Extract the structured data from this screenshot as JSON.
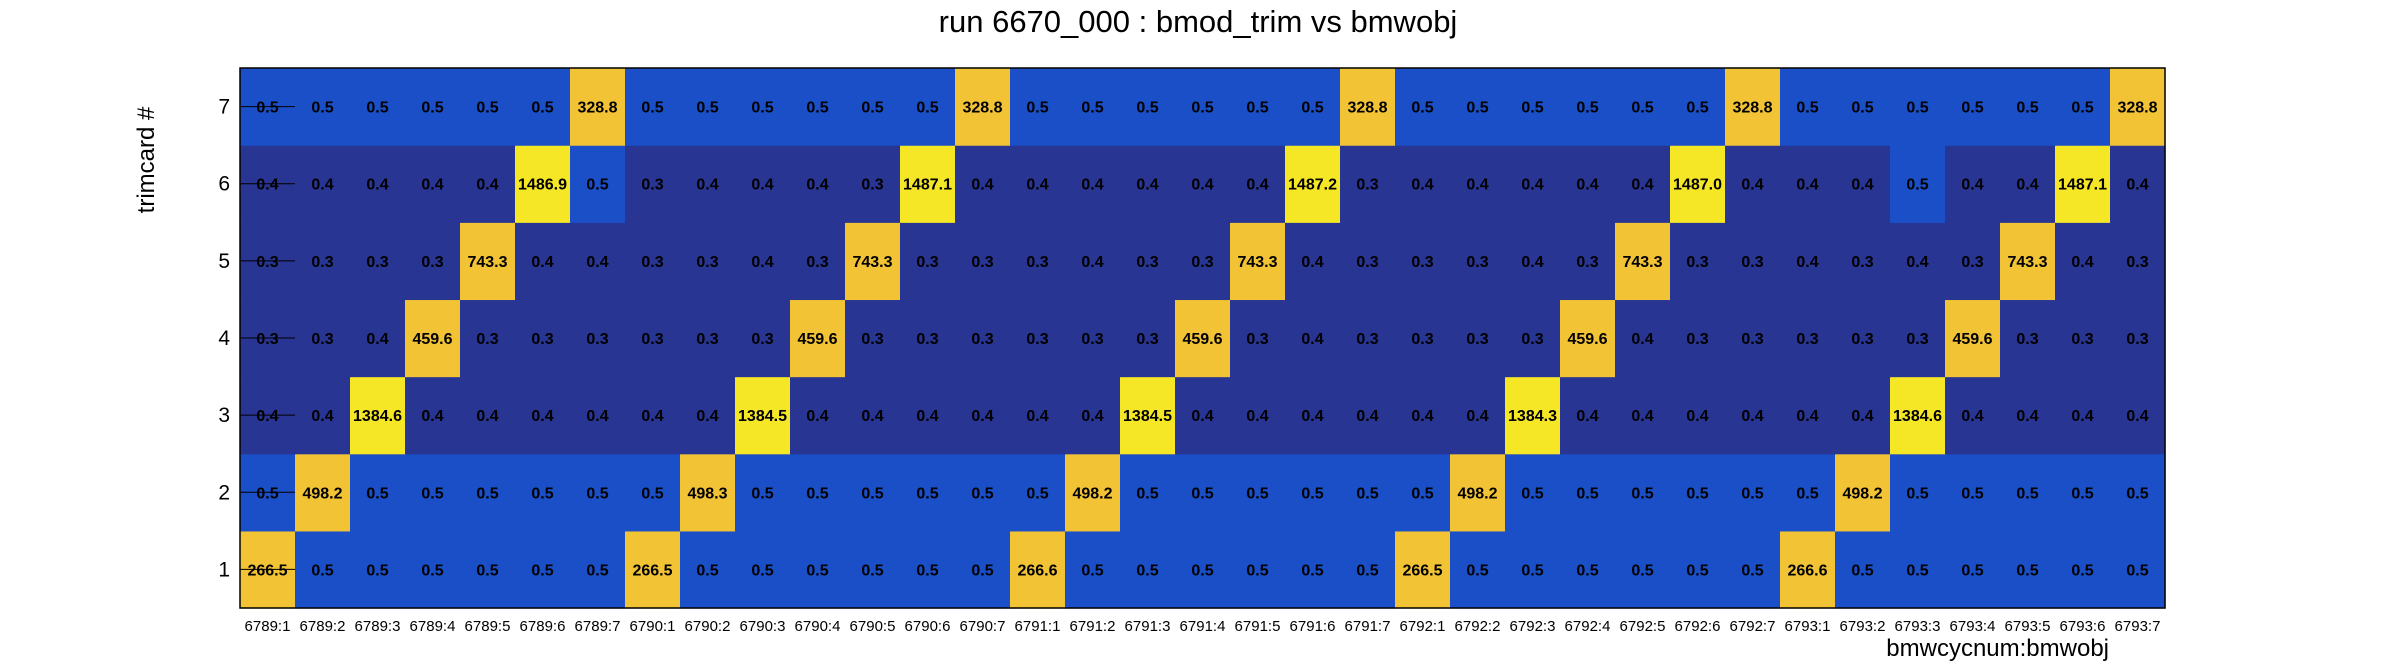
{
  "chart_data": {
    "type": "heatmap",
    "title": "run 6670_000 : bmod_trim vs bmwobj",
    "xlabel": "bmwcycnum:bmwobj",
    "ylabel": "trimcard #",
    "categories": [
      "6789:1",
      "6789:2",
      "6789:3",
      "6789:4",
      "6789:5",
      "6789:6",
      "6789:7",
      "6790:1",
      "6790:2",
      "6790:3",
      "6790:4",
      "6790:5",
      "6790:6",
      "6790:7",
      "6791:1",
      "6791:2",
      "6791:3",
      "6791:4",
      "6791:5",
      "6791:6",
      "6791:7",
      "6792:1",
      "6792:2",
      "6792:3",
      "6792:4",
      "6792:5",
      "6792:6",
      "6792:7",
      "6793:1",
      "6793:2",
      "6793:3",
      "6793:4",
      "6793:5",
      "6793:6",
      "6793:7"
    ],
    "y_categories": [
      "1",
      "2",
      "3",
      "4",
      "5",
      "6",
      "7"
    ],
    "values": [
      [
        "266.5",
        "0.5",
        "0.5",
        "0.5",
        "0.5",
        "0.5",
        "0.5",
        "266.5",
        "0.5",
        "0.5",
        "0.5",
        "0.5",
        "0.5",
        "0.5",
        "266.6",
        "0.5",
        "0.5",
        "0.5",
        "0.5",
        "0.5",
        "0.5",
        "266.5",
        "0.5",
        "0.5",
        "0.5",
        "0.5",
        "0.5",
        "0.5",
        "266.6",
        "0.5",
        "0.5",
        "0.5",
        "0.5",
        "0.5",
        "0.5"
      ],
      [
        "0.5",
        "498.2",
        "0.5",
        "0.5",
        "0.5",
        "0.5",
        "0.5",
        "0.5",
        "498.3",
        "0.5",
        "0.5",
        "0.5",
        "0.5",
        "0.5",
        "0.5",
        "498.2",
        "0.5",
        "0.5",
        "0.5",
        "0.5",
        "0.5",
        "0.5",
        "498.2",
        "0.5",
        "0.5",
        "0.5",
        "0.5",
        "0.5",
        "0.5",
        "498.2",
        "0.5",
        "0.5",
        "0.5",
        "0.5",
        "0.5"
      ],
      [
        "0.4",
        "0.4",
        "1384.6",
        "0.4",
        "0.4",
        "0.4",
        "0.4",
        "0.4",
        "0.4",
        "1384.5",
        "0.4",
        "0.4",
        "0.4",
        "0.4",
        "0.4",
        "0.4",
        "1384.5",
        "0.4",
        "0.4",
        "0.4",
        "0.4",
        "0.4",
        "0.4",
        "1384.3",
        "0.4",
        "0.4",
        "0.4",
        "0.4",
        "0.4",
        "0.4",
        "1384.6",
        "0.4",
        "0.4",
        "0.4",
        "0.4"
      ],
      [
        "0.3",
        "0.3",
        "0.4",
        "459.6",
        "0.3",
        "0.3",
        "0.3",
        "0.3",
        "0.3",
        "0.3",
        "459.6",
        "0.3",
        "0.3",
        "0.3",
        "0.3",
        "0.3",
        "0.3",
        "459.6",
        "0.3",
        "0.4",
        "0.3",
        "0.3",
        "0.3",
        "0.3",
        "459.6",
        "0.4",
        "0.3",
        "0.3",
        "0.3",
        "0.3",
        "0.3",
        "459.6",
        "0.3",
        "0.3",
        "0.3"
      ],
      [
        "0.3",
        "0.3",
        "0.3",
        "0.3",
        "743.3",
        "0.4",
        "0.4",
        "0.3",
        "0.3",
        "0.4",
        "0.3",
        "743.3",
        "0.3",
        "0.3",
        "0.3",
        "0.4",
        "0.3",
        "0.3",
        "743.3",
        "0.4",
        "0.3",
        "0.3",
        "0.3",
        "0.4",
        "0.3",
        "743.3",
        "0.3",
        "0.3",
        "0.4",
        "0.3",
        "0.4",
        "0.3",
        "743.3",
        "0.4",
        "0.3"
      ],
      [
        "0.4",
        "0.4",
        "0.4",
        "0.4",
        "0.4",
        "1486.9",
        "0.5",
        "0.3",
        "0.4",
        "0.4",
        "0.4",
        "0.3",
        "1487.1",
        "0.4",
        "0.4",
        "0.4",
        "0.4",
        "0.4",
        "0.4",
        "1487.2",
        "0.3",
        "0.4",
        "0.4",
        "0.4",
        "0.4",
        "0.4",
        "1487.0",
        "0.4",
        "0.4",
        "0.4",
        "0.5",
        "0.4",
        "0.4",
        "1487.1",
        "0.4"
      ],
      [
        "0.5",
        "0.5",
        "0.5",
        "0.5",
        "0.5",
        "0.5",
        "328.8",
        "0.5",
        "0.5",
        "0.5",
        "0.5",
        "0.5",
        "0.5",
        "328.8",
        "0.5",
        "0.5",
        "0.5",
        "0.5",
        "0.5",
        "0.5",
        "328.8",
        "0.5",
        "0.5",
        "0.5",
        "0.5",
        "0.5",
        "0.5",
        "328.8",
        "0.5",
        "0.5",
        "0.5",
        "0.5",
        "0.5",
        "0.5",
        "328.8"
      ]
    ],
    "colors": {
      "low": "#283593",
      "mid_low": "#1a4fc7",
      "high_yellow": "#f5e626",
      "high_orange": "#f2c335",
      "frame": "#000000"
    },
    "grid": false,
    "legend": "none"
  }
}
